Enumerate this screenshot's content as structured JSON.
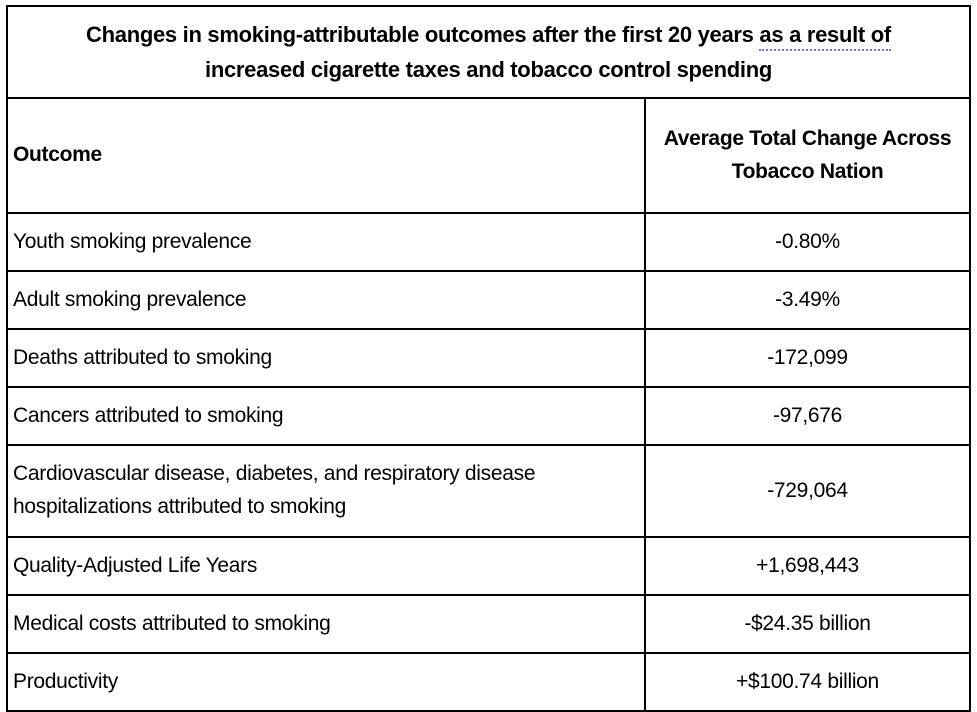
{
  "title": {
    "text_before_underline": "Changes in smoking-attributable outcomes after the first 20 years ",
    "underlined_text": "as a result of",
    "line2": "increased cigarette taxes and tobacco control spending",
    "underline_style": "dotted-grammar-suggestion",
    "underline_color": "#7b68ee"
  },
  "table": {
    "headers": {
      "outcome": "Outcome",
      "value_line1": "Average Total Change Across",
      "value_line2": "Tobacco Nation"
    },
    "rows": [
      {
        "outcome": "Youth smoking prevalence",
        "value": "-0.80%"
      },
      {
        "outcome": "Adult smoking prevalence",
        "value": "-3.49%"
      },
      {
        "outcome": "Deaths attributed to smoking",
        "value": "-172,099"
      },
      {
        "outcome": "Cancers attributed to smoking",
        "value": "-97,676"
      },
      {
        "outcome": "Cardiovascular disease, diabetes, and respiratory disease hospitalizations attributed to smoking",
        "value": "-729,064"
      },
      {
        "outcome": "Quality-Adjusted Life Years",
        "value": "+1,698,443"
      },
      {
        "outcome": "Medical costs attributed to smoking",
        "value": "-$24.35 billion"
      },
      {
        "outcome": "Productivity",
        "value": "+$100.74 billion"
      }
    ],
    "border_color": "#000000",
    "text_color": "#000000"
  }
}
